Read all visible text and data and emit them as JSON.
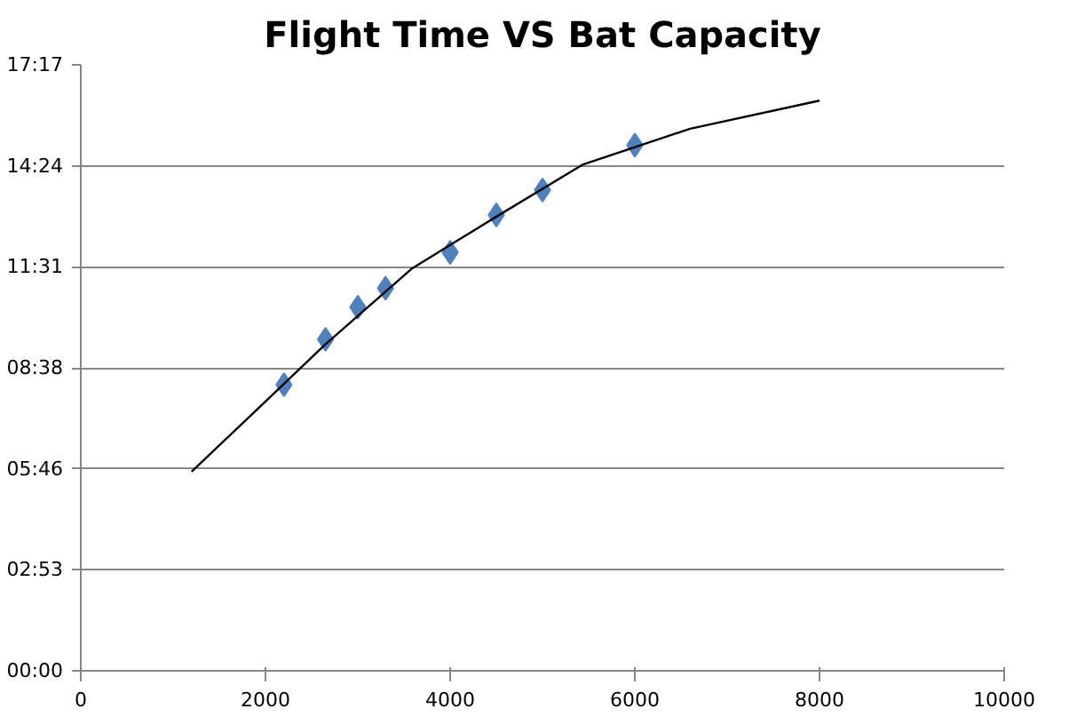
{
  "chart_data": {
    "type": "scatter",
    "title": "Flight Time VS Bat Capacity",
    "marker": "diamond",
    "grid": "y",
    "xlim": [
      0,
      10000
    ],
    "xticks": [
      0,
      2000,
      4000,
      6000,
      8000,
      10000
    ],
    "ylim": [
      0,
      17.28
    ],
    "yticks": [
      {
        "value": 0,
        "label": "00:00"
      },
      {
        "value": 2.88,
        "label": "02:53"
      },
      {
        "value": 5.76,
        "label": "05:46"
      },
      {
        "value": 8.64,
        "label": "08:38"
      },
      {
        "value": 11.52,
        "label": "11:31"
      },
      {
        "value": 14.4,
        "label": "14:24"
      },
      {
        "value": 17.28,
        "label": "17:17"
      }
    ],
    "series": [
      {
        "color": "#4f81bd",
        "x": [
          2200,
          2650,
          3000,
          3300,
          4000,
          4500,
          5000,
          6000
        ],
        "values": [
          8.16,
          9.45,
          10.37,
          10.91,
          11.93,
          13.0,
          13.71,
          14.99
        ]
      },
      {
        "type": "line",
        "color": "#000000",
        "marker": "none",
        "x": [
          1200,
          2000,
          2640,
          3590,
          4500,
          5440,
          6600,
          8000
        ],
        "values": [
          5.68,
          7.68,
          9.29,
          11.48,
          12.95,
          14.44,
          15.46,
          16.26
        ]
      }
    ]
  }
}
